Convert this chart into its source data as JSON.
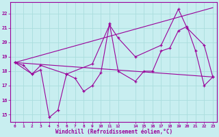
{
  "xlabel": "Windchill (Refroidissement éolien,°C)",
  "x_ticks": [
    0,
    1,
    2,
    3,
    4,
    5,
    6,
    7,
    8,
    9,
    10,
    11,
    12,
    14,
    15,
    16,
    17,
    18,
    19,
    20,
    21,
    22,
    23
  ],
  "ylim": [
    14.5,
    22.8
  ],
  "yticks": [
    15,
    16,
    17,
    18,
    19,
    20,
    21,
    22
  ],
  "xlim": [
    -0.5,
    23.5
  ],
  "background_color": "#c8eef0",
  "grid_color": "#aadddd",
  "line_color": "#990099",
  "series1": {
    "x": [
      0,
      1,
      2,
      3,
      4,
      5,
      6,
      7,
      8,
      9,
      10,
      11,
      12,
      14,
      15,
      16,
      17,
      18,
      19,
      20,
      21,
      22,
      23
    ],
    "y": [
      18.6,
      18.4,
      17.8,
      18.1,
      14.8,
      15.3,
      17.8,
      17.5,
      16.6,
      17.0,
      17.9,
      21.3,
      18.0,
      17.3,
      18.0,
      18.0,
      19.4,
      19.6,
      20.8,
      21.1,
      19.4,
      17.0,
      17.6
    ]
  },
  "series2": {
    "x": [
      0,
      2,
      3,
      6,
      9,
      11,
      12,
      14,
      17,
      19,
      20,
      22,
      23
    ],
    "y": [
      18.6,
      17.8,
      18.4,
      17.8,
      18.5,
      21.2,
      20.3,
      19.0,
      19.8,
      22.3,
      21.0,
      19.8,
      17.6
    ]
  },
  "trend1": {
    "x": [
      0,
      23
    ],
    "y": [
      18.6,
      22.4
    ]
  },
  "trend2": {
    "x": [
      0,
      23
    ],
    "y": [
      18.6,
      17.6
    ]
  }
}
